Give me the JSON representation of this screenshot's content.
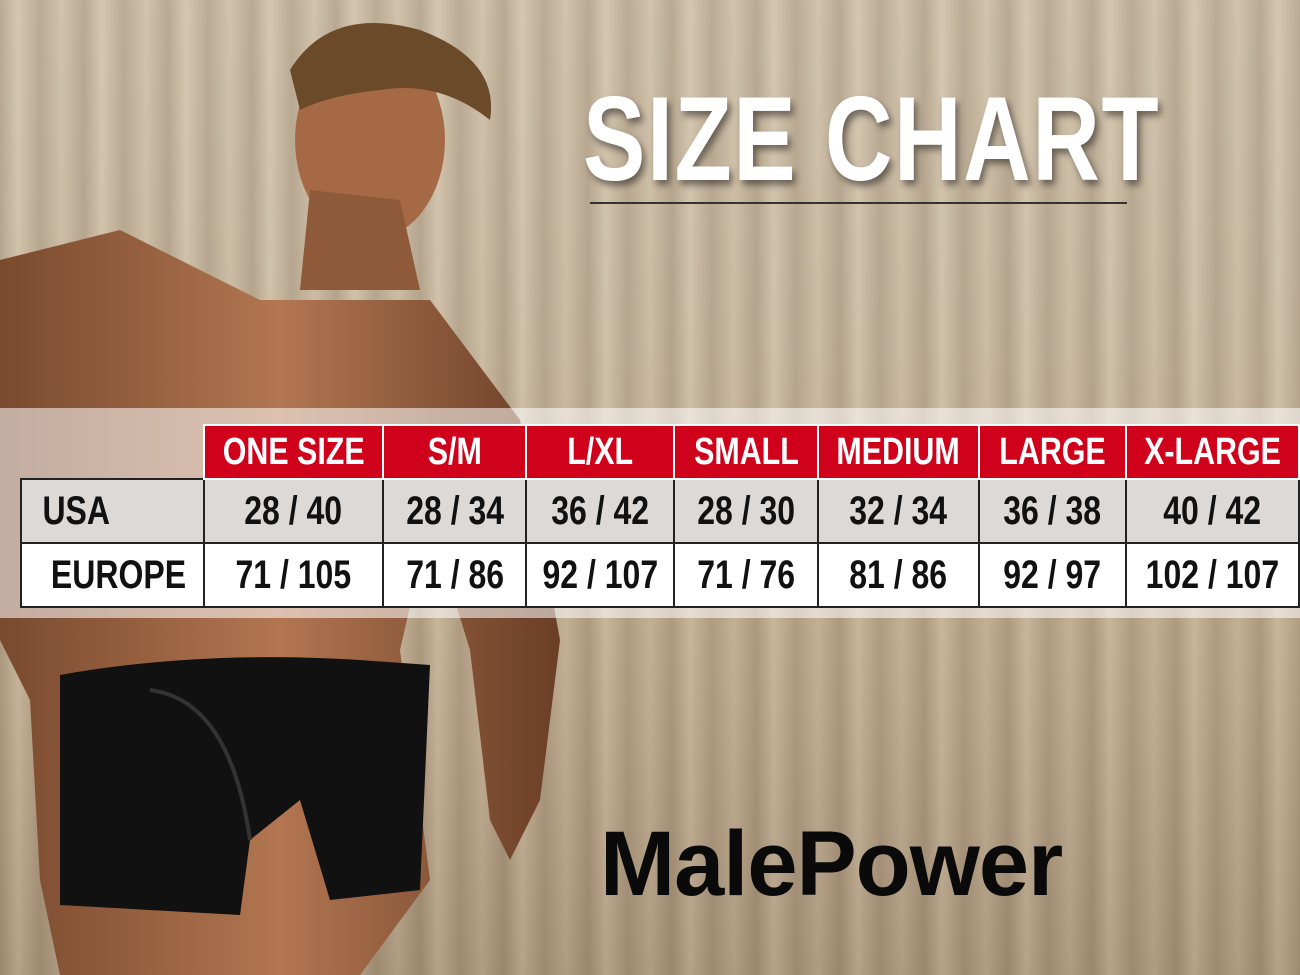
{
  "title": "SIZE CHART",
  "brand": "MalePower",
  "colors": {
    "header_red": "#d0021b",
    "usa_row": "#dcd9d6",
    "europe_row": "#ffffff"
  },
  "table": {
    "headers": [
      "ONE SIZE",
      "S/M",
      "L/XL",
      "SMALL",
      "MEDIUM",
      "LARGE",
      "X-LARGE"
    ],
    "rows": [
      {
        "label": "USA",
        "values": [
          "28 / 40",
          "28 / 34",
          "36 / 42",
          "28 / 30",
          "32 / 34",
          "36 / 38",
          "40 / 42"
        ]
      },
      {
        "label": "EUROPE",
        "values": [
          "71 / 105",
          "71 / 86",
          "92 / 107",
          "71 / 76",
          "81 / 86",
          "92 / 97",
          "102 / 107"
        ]
      }
    ]
  }
}
